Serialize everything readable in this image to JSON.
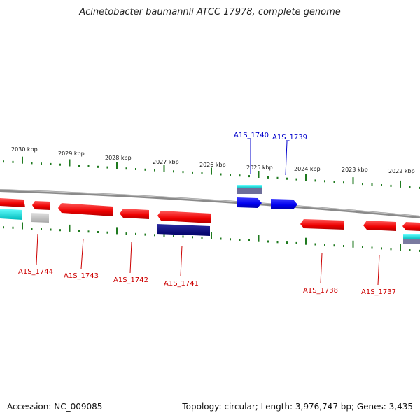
{
  "title": "Acinetobacter baumannii ATCC 17978, complete genome",
  "footer": {
    "accession": "Accession: NC_009085",
    "summary": "Topology: circular; Length: 3,976,747 bp; Genes: 3,435"
  },
  "ticks": [
    {
      "label": "2030 kbp"
    },
    {
      "label": "2029 kbp"
    },
    {
      "label": "2028 kbp"
    },
    {
      "label": "2027 kbp"
    },
    {
      "label": "2026 kbp"
    },
    {
      "label": "2025 kbp"
    },
    {
      "label": "2024 kbp"
    },
    {
      "label": "2023 kbp"
    },
    {
      "label": "2022 kbp"
    }
  ],
  "genes": [
    {
      "name": "A1S_1744",
      "color": "#cc0000"
    },
    {
      "name": "A1S_1743",
      "color": "#cc0000"
    },
    {
      "name": "A1S_1742",
      "color": "#cc0000"
    },
    {
      "name": "A1S_1741",
      "color": "#cc0000"
    },
    {
      "name": "A1S_1740",
      "color": "#0000cc"
    },
    {
      "name": "A1S_1739",
      "color": "#0000cc"
    },
    {
      "name": "A1S_1738",
      "color": "#cc0000"
    },
    {
      "name": "A1S_1737",
      "color": "#cc0000"
    }
  ],
  "colors": {
    "forward_cds": "#0000ff",
    "reverse_cds": "#ff0000",
    "backbone": "#888888",
    "gc_skew_tick": "#2a8a2a",
    "rna": "#00e5e5",
    "other": "#c0c0c0",
    "dark_feature": "#000080"
  }
}
